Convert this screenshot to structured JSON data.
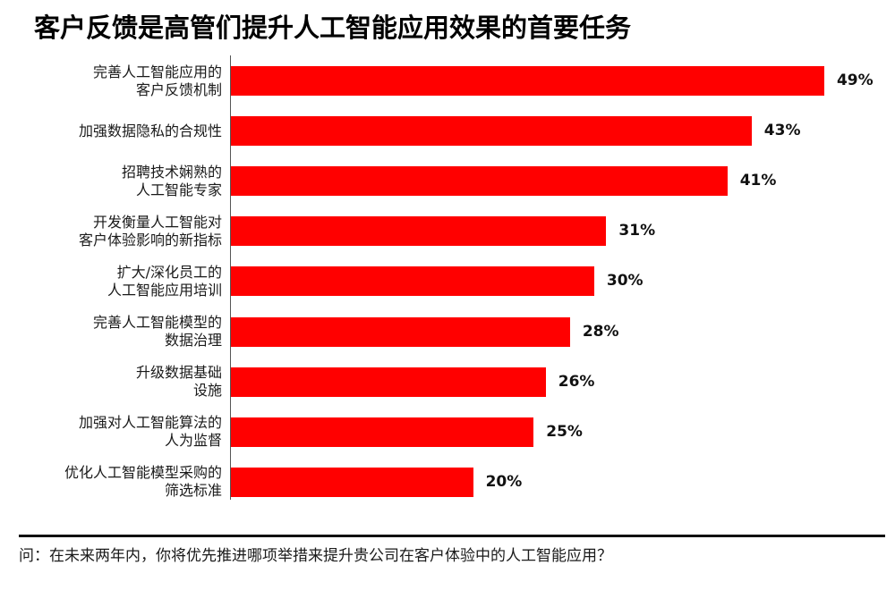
{
  "title": "客户反馈是高管们提升人工智能应用效果的首要任务",
  "footnote": "问：在未来两年内，你将优先推进哪项举措来提升贵公司在客户体验中的人工智能应用？",
  "colors": {
    "bar": "#ff0000",
    "text": "#111111",
    "axis": "#555555"
  },
  "chart_data": {
    "type": "bar",
    "orientation": "horizontal",
    "title": "客户反馈是高管们提升人工智能应用效果的首要任务",
    "xlabel": "",
    "ylabel": "",
    "unit": "%",
    "xlim": [
      0,
      50
    ],
    "grid": false,
    "legend": null,
    "categories": [
      "完善人工智能应用的客户反馈机制",
      "加强数据隐私的合规性",
      "招聘技术娴熟的人工智能专家",
      "开发衡量人工智能对客户体验影响的新指标",
      "扩大/深化员工的人工智能应用培训",
      "完善人工智能模型的数据治理",
      "升级数据基础设施",
      "加强对人工智能算法的人为监督",
      "优化人工智能模型采购的筛选标准"
    ],
    "values": [
      49,
      43,
      41,
      31,
      30,
      28,
      26,
      25,
      20
    ],
    "labels": [
      "49%",
      "43%",
      "41%",
      "31%",
      "30%",
      "28%",
      "26%",
      "25%",
      "20%"
    ],
    "category_lines": [
      [
        "完善人工智能应用的",
        "客户反馈机制"
      ],
      [
        "加强数据隐私的合规性"
      ],
      [
        "招聘技术娴熟的",
        "人工智能专家"
      ],
      [
        "开发衡量人工智能对",
        "客户体验影响的新指标"
      ],
      [
        "扩大/深化员工的",
        "人工智能应用培训"
      ],
      [
        "完善人工智能模型的",
        "数据治理"
      ],
      [
        "升级数据基础",
        "设施"
      ],
      [
        "加强对人工智能算法的",
        "人为监督"
      ],
      [
        "优化人工智能模型采购的",
        "筛选标准"
      ]
    ]
  }
}
